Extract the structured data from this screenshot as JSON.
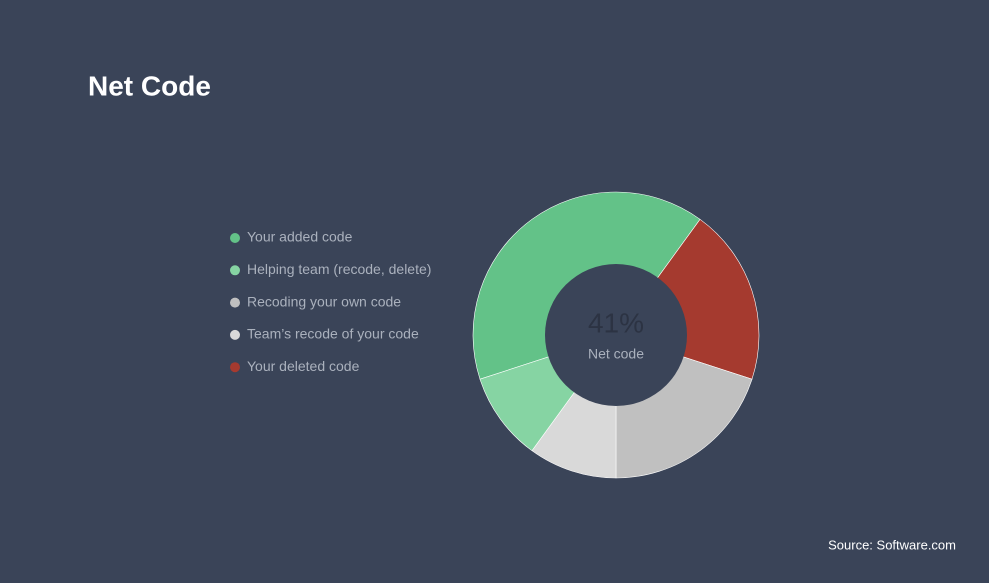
{
  "chart_data": {
    "type": "donut",
    "title": "Net Code",
    "center_value": "41%",
    "center_label": "Net code",
    "categories": [
      "Your added code",
      "Helping team (recode, delete)",
      "Recoding your own code",
      "Team’s recode of your code",
      "Your deleted code"
    ],
    "values": [
      40,
      10,
      20,
      10,
      20
    ],
    "colors": [
      "#63c288",
      "#86d4a3",
      "#c0c0c0",
      "#d9d9d9",
      "#a53a2f"
    ],
    "draw_order": [
      0,
      4,
      2,
      3,
      1
    ],
    "legend": "left",
    "source": "Source: Software.com"
  }
}
